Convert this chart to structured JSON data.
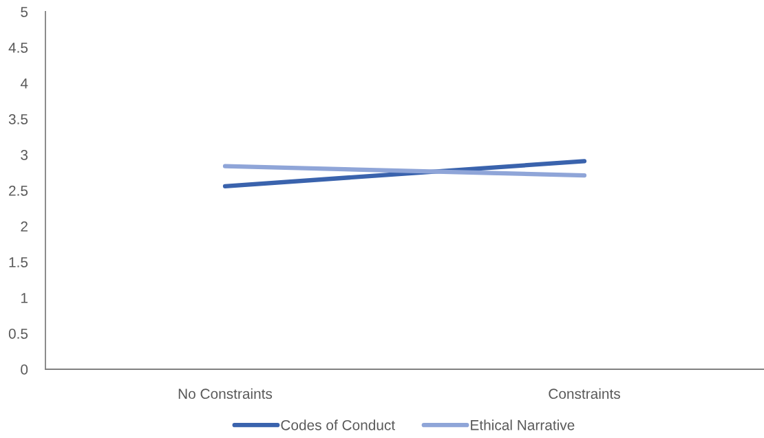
{
  "chart_data": {
    "type": "line",
    "categories": [
      "No Constraints",
      "Constraints"
    ],
    "series": [
      {
        "name": "Codes of Conduct",
        "color": "#3a63ad",
        "values": [
          2.56,
          2.91
        ]
      },
      {
        "name": "Ethical Narrative",
        "color": "#8fa5d8",
        "values": [
          2.84,
          2.71
        ]
      }
    ],
    "ylim": [
      0,
      5
    ],
    "yticks": [
      0,
      0.5,
      1,
      1.5,
      2,
      2.5,
      3,
      3.5,
      4,
      4.5,
      5
    ],
    "grid": false,
    "legend": "bottom",
    "marker": "none",
    "line_style": "solid"
  }
}
